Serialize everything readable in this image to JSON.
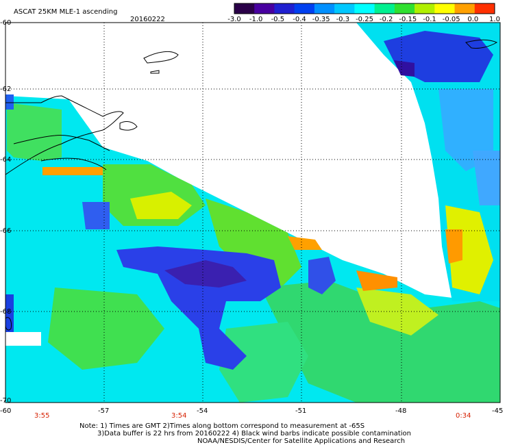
{
  "header": {
    "title": "ASCAT 25KM MLE-1 ascending",
    "date": "20160222"
  },
  "colorbar": {
    "labels": [
      "-3.0",
      "-1.0",
      "-0.5",
      "-0.4",
      "-0.35",
      "-0.3",
      "-0.25",
      "-0.2",
      "-0.15",
      "-0.1",
      "-0.05",
      "0.0",
      "1.0"
    ],
    "colors": [
      "#2a0048",
      "#4800a0",
      "#2020d0",
      "#0040f0",
      "#0090ff",
      "#00c8ff",
      "#00ffff",
      "#00f090",
      "#30e030",
      "#b0f000",
      "#ffff00",
      "#ffa000",
      "#ff3000"
    ]
  },
  "axes": {
    "lat_labels": [
      "-60",
      "-62",
      "-64",
      "-66",
      "-68",
      "-70"
    ],
    "lon_labels": [
      "-60",
      "-57",
      "-54",
      "-51",
      "-48",
      "-45"
    ],
    "time_labels": [
      "3:55",
      "3:54",
      "0:34"
    ]
  },
  "footer": {
    "line1": "Note: 1) Times are GMT 2)Times along bottom correspond to measurement at -65S",
    "line2": "3)Data buffer is 22 hrs from 20160222 4) Black wind barbs indicate possible contamination",
    "line3": "NOAA/NESDIS/Center for Satellite Applications and Research"
  }
}
